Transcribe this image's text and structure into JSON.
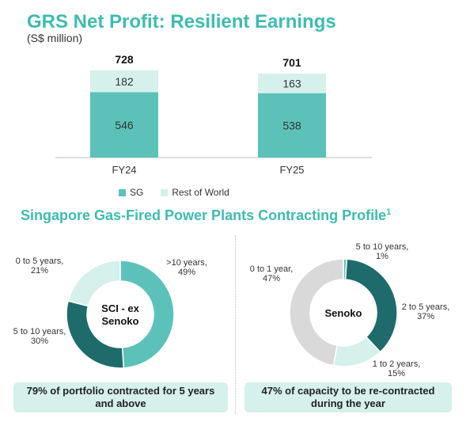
{
  "header": {
    "title": "GRS Net Profit: Resilient Earnings",
    "subtitle": "(S$ million)"
  },
  "section": {
    "title": "Singapore Gas-Fired Power Plants Contracting Profile",
    "footnote": "1"
  },
  "colors": {
    "teal": "#5cc2b9",
    "light_teal": "#d6f0ec",
    "dark_teal": "#1f6b6b",
    "grey": "#d9d9d9",
    "title": "#3dbcb0"
  },
  "chart_data": [
    {
      "type": "bar",
      "stacked": true,
      "categories": [
        "FY24",
        "FY25"
      ],
      "totals": [
        728,
        701
      ],
      "series": [
        {
          "name": "SG",
          "values": [
            546,
            538
          ],
          "color": "#5cc2b9"
        },
        {
          "name": "Rest of World",
          "values": [
            182,
            163
          ],
          "color": "#d6f0ec"
        }
      ],
      "legend_position": "bottom"
    },
    {
      "type": "pie",
      "donut": true,
      "center_label": "SCI - ex Senoko",
      "slices": [
        {
          "label": ">10 years, 49%",
          "value": 49,
          "color": "#5cc2b9"
        },
        {
          "label": "5 to 10 years, 30%",
          "value": 30,
          "color": "#1f6b6b"
        },
        {
          "label": "0 to 5 years, 21%",
          "value": 21,
          "color": "#d6f0ec"
        }
      ]
    },
    {
      "type": "pie",
      "donut": true,
      "center_label": "Senoko",
      "slices": [
        {
          "label": "5 to 10 years, 1%",
          "value": 1,
          "color": "#5cc2b9"
        },
        {
          "label": "2 to 5 years, 37%",
          "value": 37,
          "color": "#1f6b6b"
        },
        {
          "label": "1 to 2 years, 15%",
          "value": 15,
          "color": "#d6f0ec"
        },
        {
          "label": "0 to 1 year, 47%",
          "value": 47,
          "color": "#d9d9d9"
        }
      ]
    }
  ],
  "notes": {
    "left": "79% of portfolio contracted for 5 years\nand above",
    "right": "47% of capacity to be re-contracted\nduring the year"
  }
}
